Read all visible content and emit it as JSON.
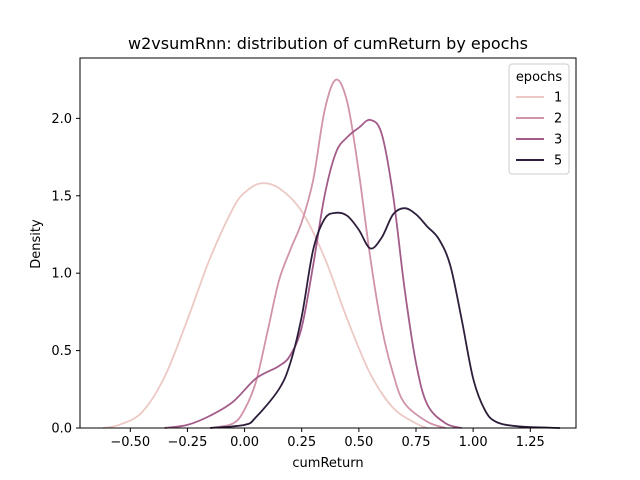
{
  "chart_data": {
    "type": "line",
    "title": "w2vsumRnn: distribution of cumReturn by epochs",
    "xlabel": "cumReturn",
    "ylabel": "Density",
    "xlim": [
      -0.72,
      1.45
    ],
    "ylim": [
      0,
      2.39
    ],
    "xticks": [
      -0.5,
      -0.25,
      0.0,
      0.25,
      0.5,
      0.75,
      1.0,
      1.25
    ],
    "xtick_labels": [
      "−0.50",
      "−0.25",
      "0.00",
      "0.25",
      "0.50",
      "0.75",
      "1.00",
      "1.25"
    ],
    "yticks": [
      0.0,
      0.5,
      1.0,
      1.5,
      2.0
    ],
    "ytick_labels": [
      "0.0",
      "0.5",
      "1.0",
      "1.5",
      "2.0"
    ],
    "grid": false,
    "legend": {
      "title": "epochs",
      "placement": "top-right"
    },
    "series": [
      {
        "name": "1",
        "color": "#ecc9c5",
        "points": [
          [
            -0.62,
            0.0
          ],
          [
            -0.55,
            0.02
          ],
          [
            -0.45,
            0.1
          ],
          [
            -0.35,
            0.33
          ],
          [
            -0.25,
            0.7
          ],
          [
            -0.15,
            1.1
          ],
          [
            -0.05,
            1.42
          ],
          [
            0.0,
            1.52
          ],
          [
            0.07,
            1.58
          ],
          [
            0.15,
            1.55
          ],
          [
            0.25,
            1.4
          ],
          [
            0.35,
            1.1
          ],
          [
            0.45,
            0.7
          ],
          [
            0.55,
            0.35
          ],
          [
            0.65,
            0.13
          ],
          [
            0.75,
            0.03
          ],
          [
            0.8,
            0.0
          ]
        ]
      },
      {
        "name": "2",
        "color": "#d193ac",
        "points": [
          [
            -0.15,
            0.0
          ],
          [
            -0.05,
            0.03
          ],
          [
            0.0,
            0.12
          ],
          [
            0.05,
            0.3
          ],
          [
            0.1,
            0.62
          ],
          [
            0.15,
            0.95
          ],
          [
            0.2,
            1.15
          ],
          [
            0.25,
            1.33
          ],
          [
            0.3,
            1.6
          ],
          [
            0.35,
            2.05
          ],
          [
            0.4,
            2.25
          ],
          [
            0.45,
            2.1
          ],
          [
            0.5,
            1.65
          ],
          [
            0.55,
            1.1
          ],
          [
            0.6,
            0.65
          ],
          [
            0.65,
            0.35
          ],
          [
            0.7,
            0.16
          ],
          [
            0.8,
            0.04
          ],
          [
            0.88,
            0.0
          ]
        ]
      },
      {
        "name": "3",
        "color": "#a35c8a",
        "points": [
          [
            -0.35,
            0.0
          ],
          [
            -0.25,
            0.02
          ],
          [
            -0.15,
            0.08
          ],
          [
            -0.05,
            0.17
          ],
          [
            0.05,
            0.32
          ],
          [
            0.15,
            0.4
          ],
          [
            0.2,
            0.47
          ],
          [
            0.25,
            0.65
          ],
          [
            0.3,
            1.05
          ],
          [
            0.35,
            1.5
          ],
          [
            0.4,
            1.78
          ],
          [
            0.45,
            1.88
          ],
          [
            0.5,
            1.94
          ],
          [
            0.55,
            1.99
          ],
          [
            0.6,
            1.9
          ],
          [
            0.65,
            1.5
          ],
          [
            0.7,
            0.9
          ],
          [
            0.75,
            0.42
          ],
          [
            0.8,
            0.15
          ],
          [
            0.88,
            0.03
          ],
          [
            0.95,
            0.0
          ]
        ]
      },
      {
        "name": "5",
        "color": "#2e1e3b",
        "points": [
          [
            -0.15,
            0.0
          ],
          [
            0.0,
            0.02
          ],
          [
            0.05,
            0.07
          ],
          [
            0.15,
            0.25
          ],
          [
            0.2,
            0.42
          ],
          [
            0.25,
            0.72
          ],
          [
            0.3,
            1.15
          ],
          [
            0.35,
            1.35
          ],
          [
            0.4,
            1.39
          ],
          [
            0.45,
            1.37
          ],
          [
            0.5,
            1.28
          ],
          [
            0.55,
            1.16
          ],
          [
            0.6,
            1.23
          ],
          [
            0.65,
            1.38
          ],
          [
            0.7,
            1.42
          ],
          [
            0.75,
            1.38
          ],
          [
            0.8,
            1.3
          ],
          [
            0.85,
            1.22
          ],
          [
            0.9,
            1.05
          ],
          [
            0.95,
            0.7
          ],
          [
            1.0,
            0.32
          ],
          [
            1.05,
            0.12
          ],
          [
            1.1,
            0.04
          ],
          [
            1.2,
            0.01
          ],
          [
            1.38,
            0.0
          ]
        ]
      }
    ]
  }
}
